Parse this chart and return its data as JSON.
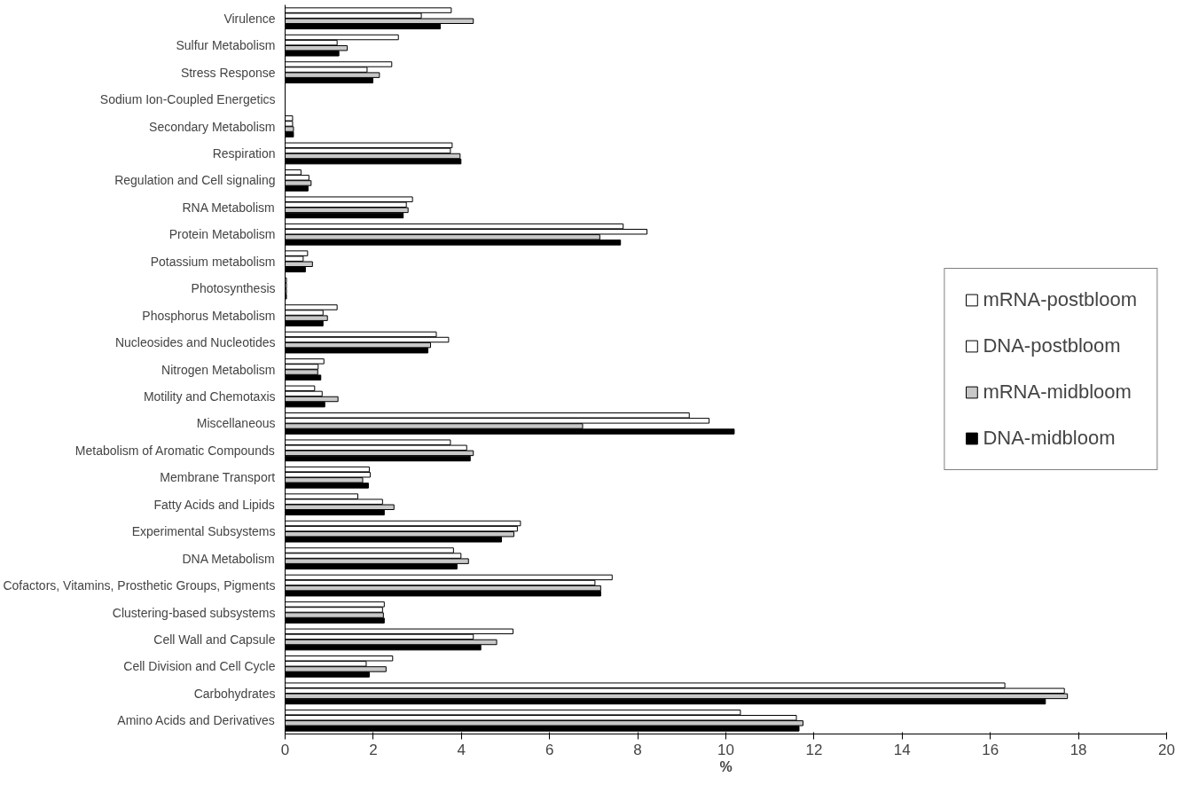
{
  "chart_data": {
    "type": "bar",
    "orientation": "horizontal",
    "xlabel": "%",
    "categories": [
      "Virulence",
      "Sulfur Metabolism",
      "Stress Response",
      "Sodium Ion-Coupled Energetics",
      "Secondary Metabolism",
      "Respiration",
      "Regulation and Cell signaling",
      "RNA Metabolism",
      "Protein Metabolism",
      "Potassium metabolism",
      "Photosynthesis",
      "Phosphorus Metabolism",
      "Nucleosides and Nucleotides",
      "Nitrogen Metabolism",
      "Motility and Chemotaxis",
      "Miscellaneous",
      "Metabolism of Aromatic Compounds",
      "Membrane Transport",
      "Fatty Acids and Lipids",
      "Experimental Subsystems",
      "DNA Metabolism",
      "Cofactors, Vitamins, Prosthetic Groups, Pigments",
      "Clustering-based subsystems",
      "Cell Wall and Capsule",
      "Cell Division and Cell Cycle",
      "Carbohydrates",
      "Amino Acids and Derivatives"
    ],
    "series": [
      {
        "name": "mRNA-postbloom",
        "color": "#ffffff",
        "values": [
          3.77,
          2.57,
          2.42,
          null,
          0.17,
          3.79,
          0.36,
          2.89,
          7.67,
          0.51,
          0.03,
          1.18,
          3.43,
          0.88,
          0.67,
          9.17,
          3.75,
          1.91,
          1.65,
          5.34,
          3.82,
          7.42,
          2.25,
          5.17,
          2.44,
          16.33,
          10.33
        ]
      },
      {
        "name": "DNA-postbloom",
        "color": "#ffffff",
        "values": [
          3.09,
          1.18,
          1.86,
          null,
          0.17,
          3.75,
          0.54,
          2.75,
          8.21,
          0.41,
          0.03,
          0.86,
          3.71,
          0.75,
          0.84,
          9.62,
          4.12,
          1.93,
          2.21,
          5.27,
          3.99,
          7.03,
          2.21,
          4.27,
          1.84,
          17.68,
          11.6
        ]
      },
      {
        "name": "mRNA-midbloom",
        "color": "#c8c8c8",
        "values": [
          4.27,
          1.41,
          2.14,
          null,
          0.19,
          3.97,
          0.59,
          2.79,
          7.14,
          0.62,
          0.03,
          0.96,
          3.3,
          0.74,
          1.2,
          6.75,
          4.27,
          1.76,
          2.47,
          5.19,
          4.16,
          7.16,
          2.23,
          4.8,
          2.29,
          17.75,
          11.75
        ]
      },
      {
        "name": "DNA-midbloom",
        "color": "#000000",
        "values": [
          3.52,
          1.22,
          1.99,
          null,
          0.19,
          3.99,
          0.52,
          2.68,
          7.61,
          0.46,
          0.03,
          0.86,
          3.24,
          0.81,
          0.9,
          10.19,
          4.2,
          1.89,
          2.25,
          4.91,
          3.9,
          7.16,
          2.25,
          4.44,
          1.91,
          17.25,
          11.66
        ]
      }
    ],
    "xlim": [
      0,
      20
    ],
    "xticks": [
      0,
      2,
      4,
      6,
      8,
      10,
      12,
      14,
      16,
      18,
      20
    ],
    "grid": false,
    "legend": "right"
  }
}
